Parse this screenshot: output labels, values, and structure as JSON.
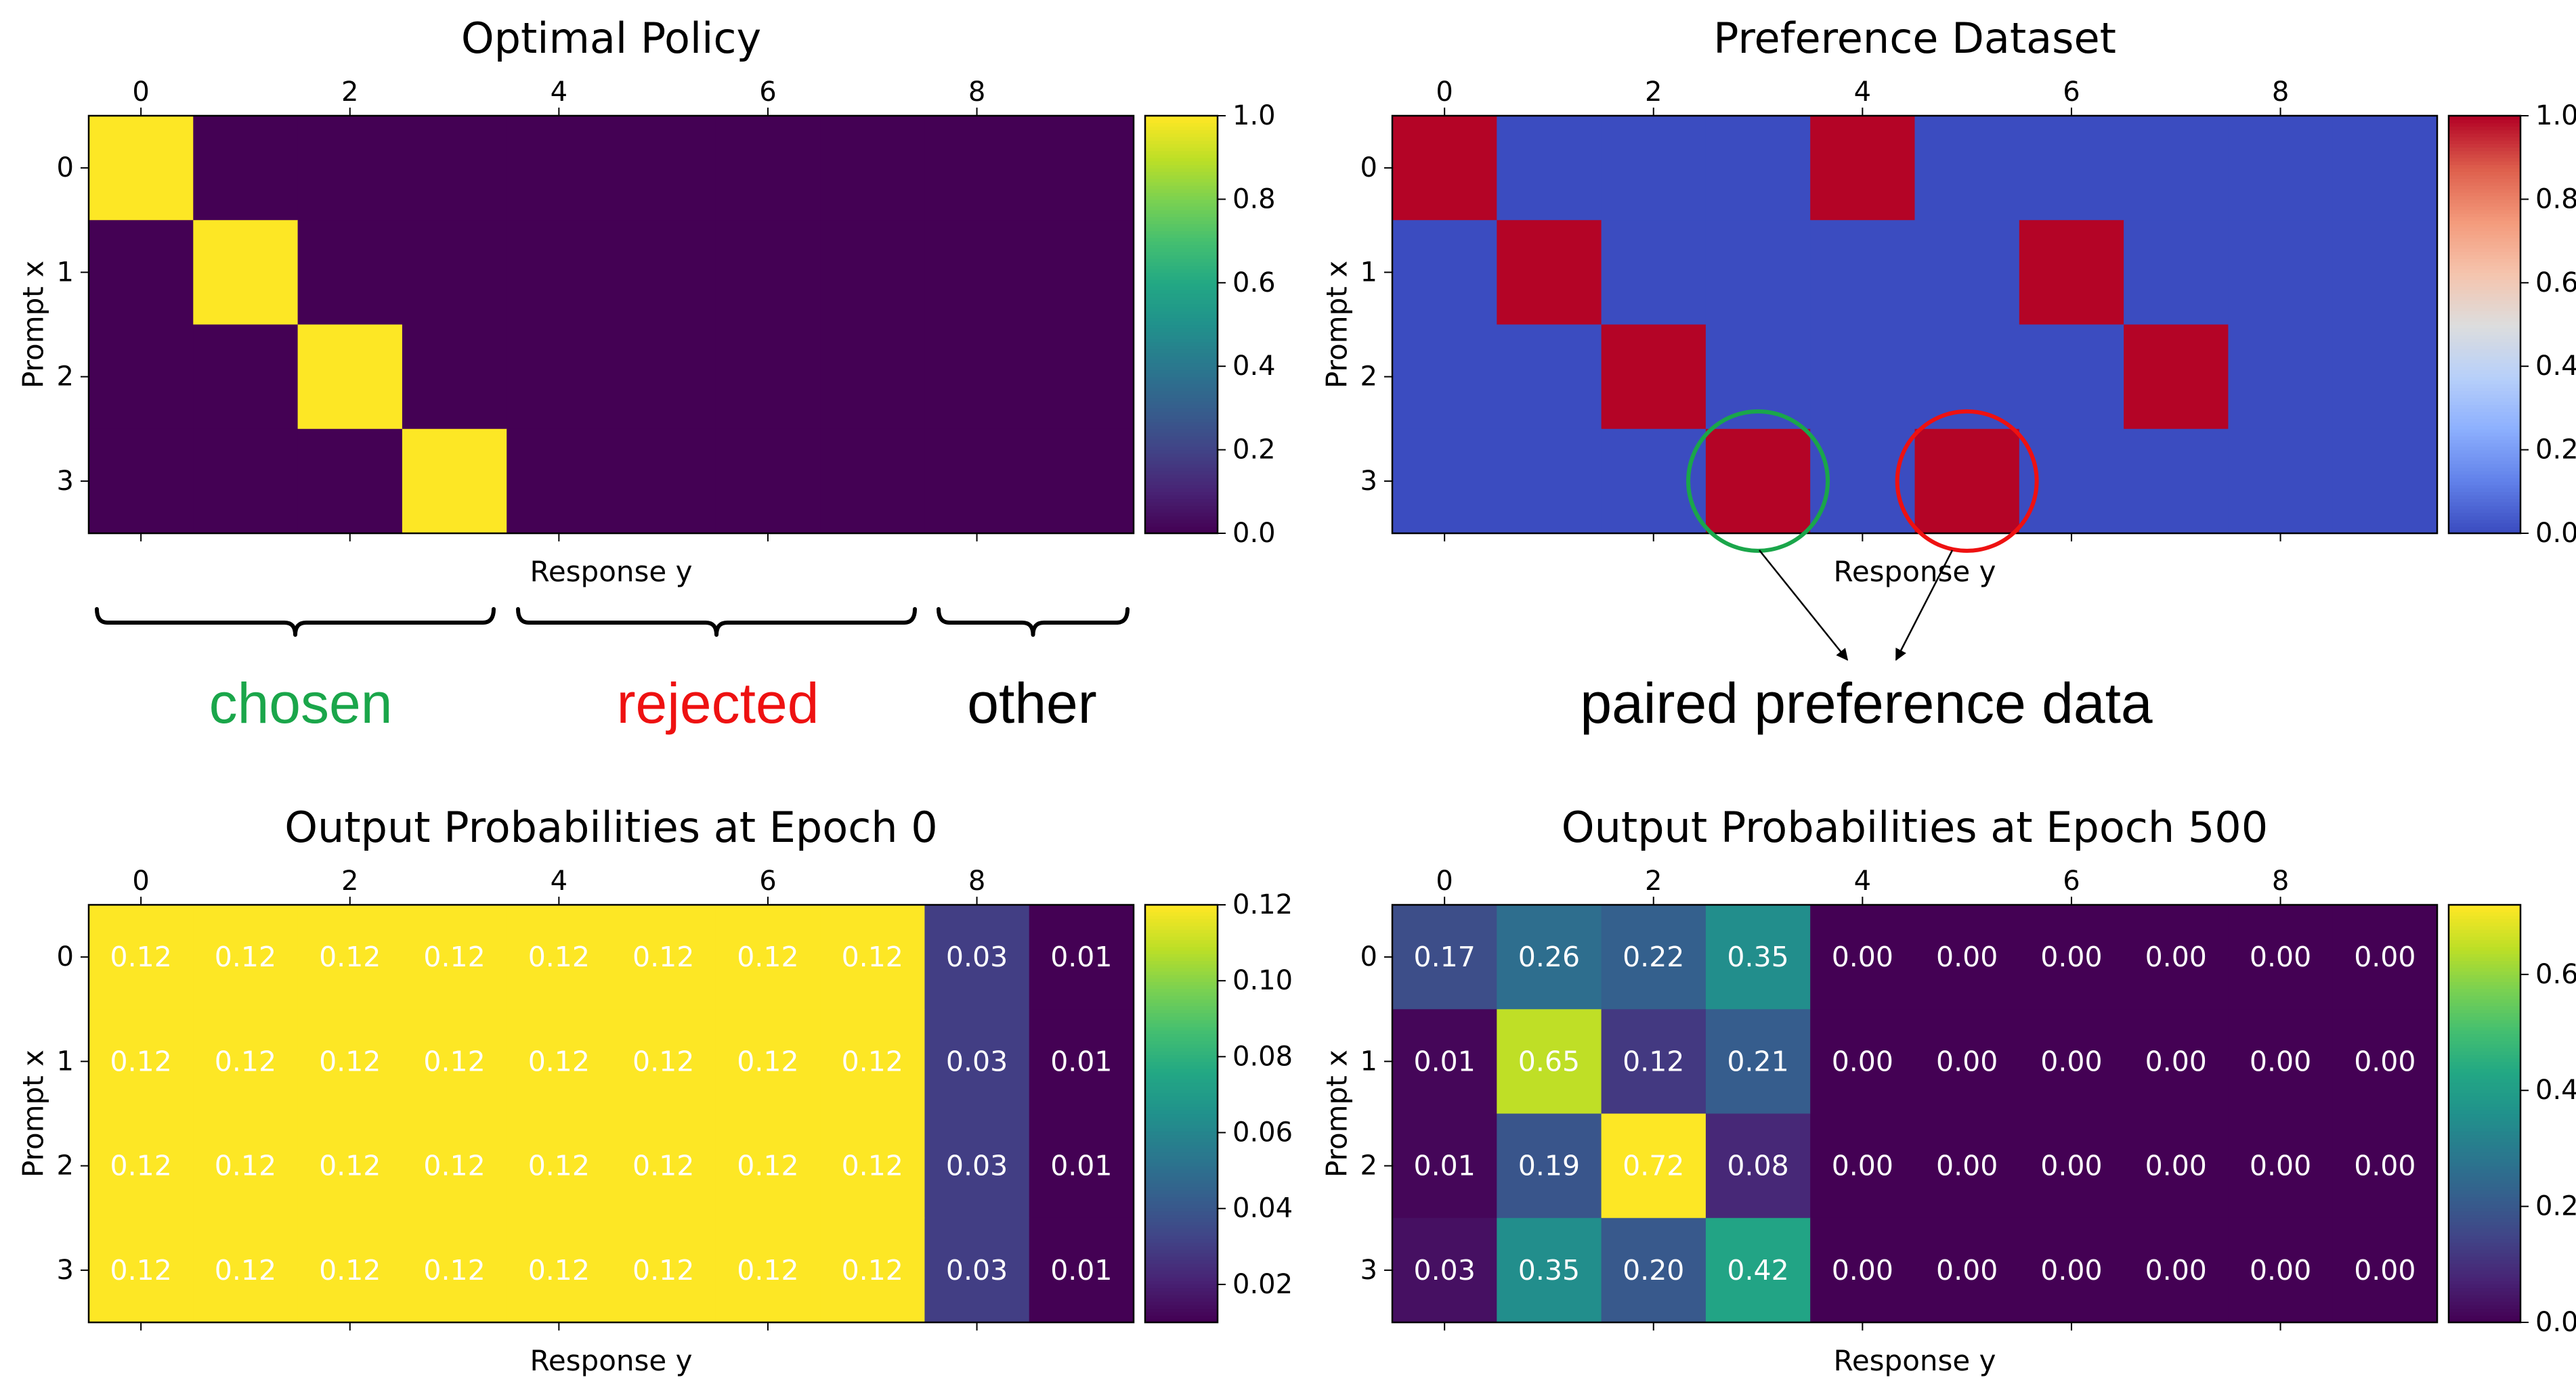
{
  "colors": {
    "chosen": "#1aa64a",
    "rejected": "#ee1111",
    "other": "#000000",
    "arrow": "#000000"
  },
  "annotations": {
    "chosen": "chosen",
    "rejected": "rejected",
    "other": "other",
    "paired": "paired preference data",
    "chosen_circle_color": "#1aa64a",
    "rejected_circle_color": "#ee1111"
  },
  "chart_data": [
    {
      "id": "optimal",
      "type": "heatmap",
      "title": "Optimal Policy",
      "xlabel": "Response y",
      "ylabel": "Prompt x",
      "cmap": "viridis",
      "vmin": 0.0,
      "vmax": 1.0,
      "x_ticks": [
        0,
        2,
        4,
        6,
        8
      ],
      "y_ticks": [
        0,
        1,
        2,
        3
      ],
      "colorbar_ticks": [
        "0.0",
        "0.2",
        "0.4",
        "0.6",
        "0.8",
        "1.0"
      ],
      "show_values": false,
      "values": [
        [
          1,
          0,
          0,
          0,
          0,
          0,
          0,
          0,
          0,
          0
        ],
        [
          0,
          1,
          0,
          0,
          0,
          0,
          0,
          0,
          0,
          0
        ],
        [
          0,
          0,
          1,
          0,
          0,
          0,
          0,
          0,
          0,
          0
        ],
        [
          0,
          0,
          0,
          1,
          0,
          0,
          0,
          0,
          0,
          0
        ]
      ]
    },
    {
      "id": "preference",
      "type": "heatmap",
      "title": "Preference Dataset",
      "xlabel": "Response y",
      "ylabel": "Prompt x",
      "cmap": "coolwarm",
      "vmin": 0.0,
      "vmax": 1.0,
      "x_ticks": [
        0,
        2,
        4,
        6,
        8
      ],
      "y_ticks": [
        0,
        1,
        2,
        3
      ],
      "colorbar_ticks": [
        "0.0",
        "0.2",
        "0.4",
        "0.6",
        "0.8",
        "1.0"
      ],
      "show_values": false,
      "values": [
        [
          1,
          0,
          0,
          0,
          1,
          0,
          0,
          0,
          0,
          0
        ],
        [
          0,
          1,
          0,
          0,
          0,
          0,
          1,
          0,
          0,
          0
        ],
        [
          0,
          0,
          1,
          0,
          0,
          0,
          0,
          1,
          0,
          0
        ],
        [
          0,
          0,
          0,
          1,
          0,
          1,
          0,
          0,
          0,
          0
        ]
      ]
    },
    {
      "id": "epoch0",
      "type": "heatmap",
      "title": "Output Probabilities at Epoch 0",
      "xlabel": "Response y",
      "ylabel": "Prompt x",
      "cmap": "viridis",
      "vmin": 0.01,
      "vmax": 0.12,
      "x_ticks": [
        0,
        2,
        4,
        6,
        8
      ],
      "y_ticks": [
        0,
        1,
        2,
        3
      ],
      "colorbar_ticks": [
        "0.02",
        "0.04",
        "0.06",
        "0.08",
        "0.10",
        "0.12"
      ],
      "show_values": true,
      "values": [
        [
          0.12,
          0.12,
          0.12,
          0.12,
          0.12,
          0.12,
          0.12,
          0.12,
          0.03,
          0.01
        ],
        [
          0.12,
          0.12,
          0.12,
          0.12,
          0.12,
          0.12,
          0.12,
          0.12,
          0.03,
          0.01
        ],
        [
          0.12,
          0.12,
          0.12,
          0.12,
          0.12,
          0.12,
          0.12,
          0.12,
          0.03,
          0.01
        ],
        [
          0.12,
          0.12,
          0.12,
          0.12,
          0.12,
          0.12,
          0.12,
          0.12,
          0.03,
          0.01
        ]
      ]
    },
    {
      "id": "epoch500",
      "type": "heatmap",
      "title": "Output Probabilities at Epoch 500",
      "xlabel": "Response y",
      "ylabel": "Prompt x",
      "cmap": "viridis",
      "vmin": 0.0,
      "vmax": 0.72,
      "x_ticks": [
        0,
        2,
        4,
        6,
        8
      ],
      "y_ticks": [
        0,
        1,
        2,
        3
      ],
      "colorbar_ticks": [
        "0.0",
        "0.2",
        "0.4",
        "0.6"
      ],
      "show_values": true,
      "values": [
        [
          0.17,
          0.26,
          0.22,
          0.35,
          0.0,
          0.0,
          0.0,
          0.0,
          0.0,
          0.0
        ],
        [
          0.01,
          0.65,
          0.12,
          0.21,
          0.0,
          0.0,
          0.0,
          0.0,
          0.0,
          0.0
        ],
        [
          0.01,
          0.19,
          0.72,
          0.08,
          0.0,
          0.0,
          0.0,
          0.0,
          0.0,
          0.0
        ],
        [
          0.03,
          0.35,
          0.2,
          0.42,
          0.0,
          0.0,
          0.0,
          0.0,
          0.0,
          0.0
        ]
      ]
    }
  ]
}
